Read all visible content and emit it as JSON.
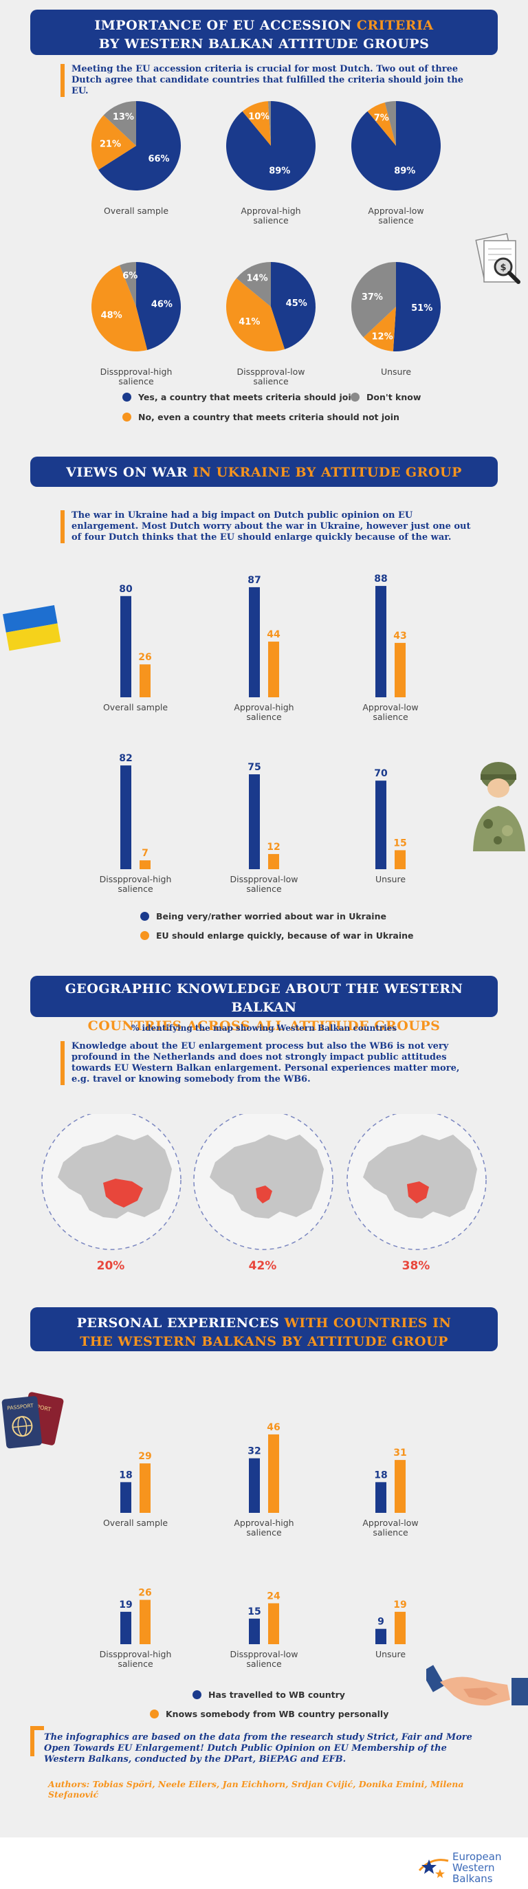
{
  "colors": {
    "blue": "#1a3a8c",
    "orange": "#f7941d",
    "gray": "#8a8a8a",
    "red": "#e8463b"
  },
  "section1": {
    "title_line1_a": "IMPORTANCE OF ",
    "title_line1_b": "EU ACCESSION ",
    "title_line1_c": "CRITERIA",
    "title_line2": "BY WESTERN BALKAN ATTITUDE GROUPS",
    "intro": "Meeting the EU accession criteria is crucial for most Dutch. Two out of three Dutch agree that candidate countries that fulfilled the criteria should join the EU.",
    "legend_yes": "Yes, a country that meets criteria should join",
    "legend_dk": "Don't know",
    "legend_no": "No, even a country that meets criteria should not join"
  },
  "section2": {
    "title_a": "VIEWS ON WAR ",
    "title_b": "IN UKRAINE BY ATTITUDE GROUP",
    "intro": "The war in Ukraine had a big impact on Dutch public opinion on EU enlargement. Most Dutch worry about the war in Ukraine, however just one out of four Dutch thinks that the EU should enlarge quickly because of the war.",
    "legend_worried": "Being very/rather worried about war in Ukraine",
    "legend_enlarge": "EU should enlarge quickly, because of war in Ukraine"
  },
  "section3": {
    "title_line1_a": "GEOGRAPHIC KNOWLEDGE ABOUT THE ",
    "title_line1_b": "WESTERN BALKAN",
    "title_line2": "COUNTRIES ACROSS ALL ATTITUDE GROUPS",
    "subtitle": "% identifying the map showing Western Balkan countries",
    "intro": "Knowledge about the EU enlargement process but also the WB6 is not very profound in the Netherlands and does not strongly impact public attitudes towards EU Western Balkan enlargement. Personal experiences matter more, e.g. travel or knowing somebody from the WB6.",
    "maps": [
      "20%",
      "42%",
      "38%"
    ]
  },
  "section4": {
    "title_line1_a": "PERSONAL EXPERIENCES ",
    "title_line1_b": "WITH COUNTRIES IN",
    "title_line2": "THE WESTERN BALKANS BY ATTITUDE GROUP",
    "legend_travelled": "Has travelled to WB country",
    "legend_knows": "Knows somebody from WB country personally"
  },
  "footer": {
    "source": "The infographics are based on the data from the research study Strict, Fair and More Open Towards EU Enlargement! Dutch Public Opinion on EU Membership of the Western Balkans, conducted by the DPart, BiEPAG and EFB.",
    "authors": "Authors: Tobias Spöri, Neele Eilers, Jan Eichhorn, Srdjan Cvijić, Donika Emini, Milena Stefanović",
    "logo_line1": "European",
    "logo_line2": "Western",
    "logo_line3": "Balkans"
  },
  "chart_data": [
    {
      "type": "pie",
      "categories_legend": [
        "Yes, a country that meets criteria should join",
        "No, even a country that meets criteria should not join",
        "Don't know"
      ],
      "groups": [
        {
          "name": "Overall sample",
          "yes": 66,
          "no": 21,
          "dk": 13
        },
        {
          "name": "Approval-high salience",
          "yes": 89,
          "no": 10,
          "dk": 1
        },
        {
          "name": "Approval-low salience",
          "yes": 89,
          "no": 7,
          "dk": 4
        },
        {
          "name": "Disspproval-high salience",
          "yes": 46,
          "no": 48,
          "dk": 6
        },
        {
          "name": "Disspproval-low salience",
          "yes": 45,
          "no": 41,
          "dk": 14
        },
        {
          "name": "Unsure",
          "yes": 51,
          "no": 12,
          "dk": 37
        }
      ],
      "labels": [
        {
          "yes": "66%",
          "no": "21%",
          "dk": "13%"
        },
        {
          "yes": "89%",
          "no": "10%",
          "dk": ""
        },
        {
          "yes": "89%",
          "no": "7%",
          "dk": ""
        },
        {
          "yes": "46%",
          "no": "48%",
          "dk": "6%"
        },
        {
          "yes": "45%",
          "no": "41%",
          "dk": "14%"
        },
        {
          "yes": "51%",
          "no": "12%",
          "dk": "37%"
        }
      ]
    },
    {
      "type": "bar",
      "categories": [
        "Overall sample",
        "Approval-high salience",
        "Approval-low salience",
        "Disspproval-high salience",
        "Disspproval-low salience",
        "Unsure"
      ],
      "series": [
        {
          "name": "Being very/rather worried about war in Ukraine",
          "values": [
            80,
            87,
            88,
            82,
            75,
            70
          ]
        },
        {
          "name": "EU should enlarge quickly, because of war in Ukraine",
          "values": [
            26,
            44,
            43,
            7,
            12,
            15
          ]
        }
      ]
    },
    {
      "type": "bar",
      "categories": [
        "Overall sample",
        "Approval-high salience",
        "Approval-low salience",
        "Disspproval-high salience",
        "Disspproval-low salience",
        "Unsure"
      ],
      "series": [
        {
          "name": "Has travelled to WB country",
          "values": [
            18,
            32,
            18,
            19,
            15,
            9
          ]
        },
        {
          "name": "Knows somebody from WB country personally",
          "values": [
            29,
            46,
            31,
            26,
            24,
            19
          ]
        }
      ]
    }
  ]
}
